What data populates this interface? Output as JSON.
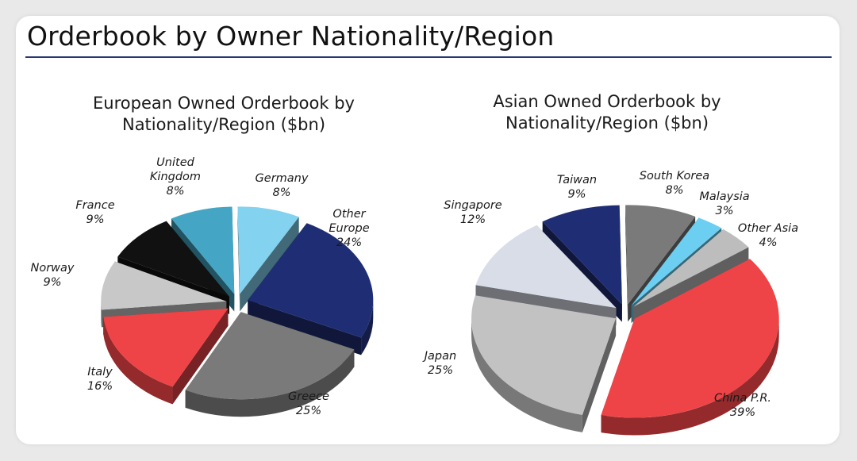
{
  "page": {
    "title": "Orderbook by Owner Nationality/Region"
  },
  "chart_data": [
    {
      "type": "pie",
      "title_lines": [
        "European Owned Orderbook by",
        "Nationality/Region ($bn)"
      ],
      "slices": [
        {
          "label_lines": [
            "Germany"
          ],
          "pct": "8%",
          "value": 8,
          "color": "#82d2f0"
        },
        {
          "label_lines": [
            "Other",
            "Europe"
          ],
          "pct": "24%",
          "value": 24,
          "color": "#1f2e74"
        },
        {
          "label_lines": [
            "Greece"
          ],
          "pct": "25%",
          "value": 25,
          "color": "#7a7a7a"
        },
        {
          "label_lines": [
            "Italy"
          ],
          "pct": "16%",
          "value": 16,
          "color": "#ee4447"
        },
        {
          "label_lines": [
            "Norway"
          ],
          "pct": "9%",
          "value": 9,
          "color": "#c8c8c8"
        },
        {
          "label_lines": [
            "France"
          ],
          "pct": "9%",
          "value": 9,
          "color": "#111111"
        },
        {
          "label_lines": [
            "United",
            "Kingdom"
          ],
          "pct": "8%",
          "value": 8,
          "color": "#44a6c4"
        }
      ]
    },
    {
      "type": "pie",
      "title_lines": [
        "Asian Owned Orderbook by",
        "Nationality/Region ($bn)"
      ],
      "slices": [
        {
          "label_lines": [
            "South Korea"
          ],
          "pct": "8%",
          "value": 8,
          "color": "#7a7a7a"
        },
        {
          "label_lines": [
            "Malaysia"
          ],
          "pct": "3%",
          "value": 3,
          "color": "#6ccff2"
        },
        {
          "label_lines": [
            "Other Asia"
          ],
          "pct": "4%",
          "value": 4,
          "color": "#bdbdbd"
        },
        {
          "label_lines": [
            "China P.R."
          ],
          "pct": "39%",
          "value": 39,
          "color": "#ee4447"
        },
        {
          "label_lines": [
            "Japan"
          ],
          "pct": "25%",
          "value": 25,
          "color": "#c2c2c2"
        },
        {
          "label_lines": [
            "Singapore"
          ],
          "pct": "12%",
          "value": 12,
          "color": "#d9dde8"
        },
        {
          "label_lines": [
            "Taiwan"
          ],
          "pct": "9%",
          "value": 9,
          "color": "#1f2e74"
        }
      ]
    }
  ]
}
